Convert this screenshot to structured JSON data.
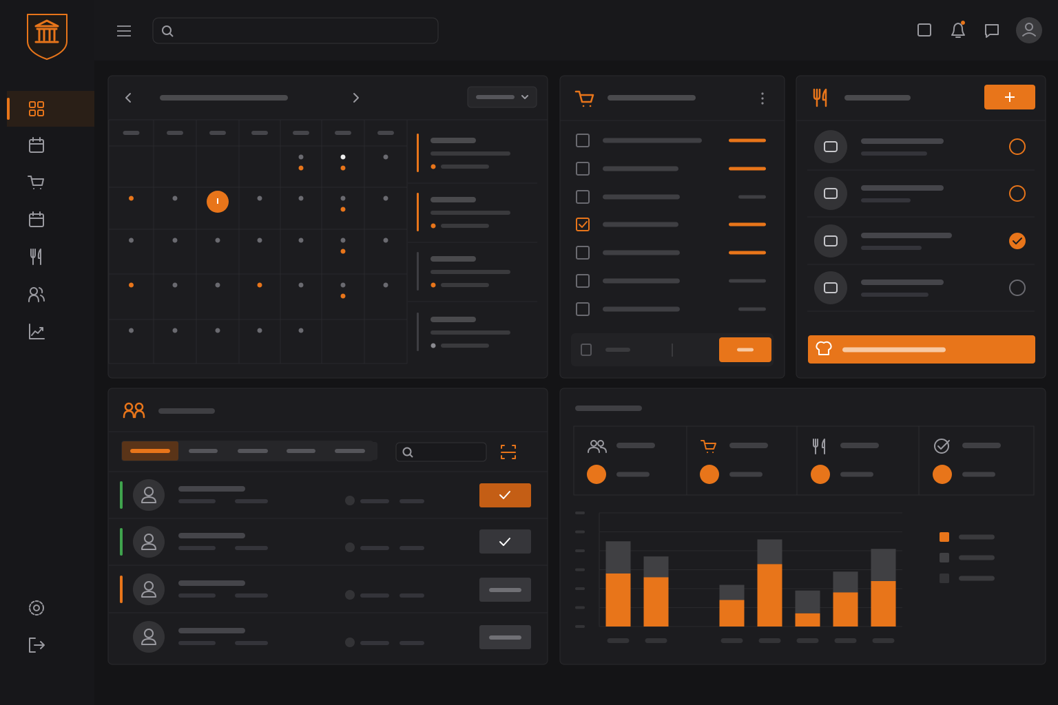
{
  "chart_data": {
    "type": "bar",
    "stacked": true,
    "categories": [
      null,
      null,
      null,
      null,
      null,
      null,
      null,
      null
    ],
    "series": [
      {
        "color": "#e8751a",
        "values": [
          2.8,
          2.6,
          null,
          1.4,
          3.3,
          0.7,
          1.8,
          2.4
        ]
      },
      {
        "color": "#404043",
        "values": [
          1.7,
          1.1,
          null,
          0.8,
          1.3,
          1.2,
          1.1,
          1.7
        ]
      }
    ],
    "ylim": [
      0,
      6
    ],
    "yticks": [
      0,
      1,
      2,
      3,
      4,
      5,
      6
    ],
    "grid": true
  }
}
